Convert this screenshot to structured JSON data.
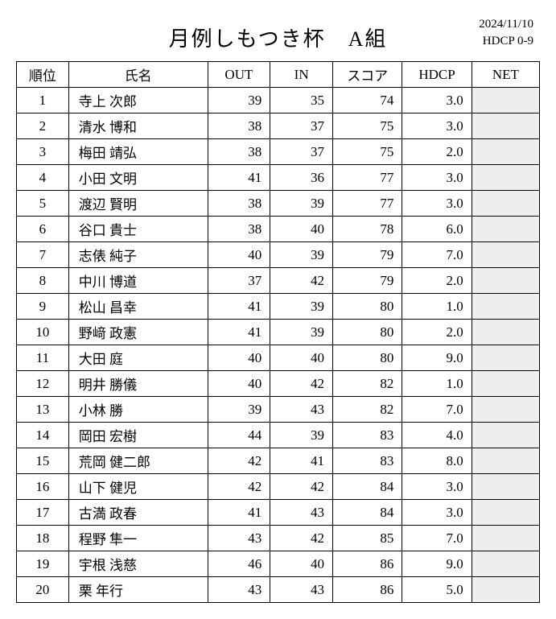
{
  "header": {
    "title": "月例しもつき杯　A組",
    "date": "2024/11/10",
    "hdcp_range": "HDCP 0-9"
  },
  "table": {
    "columns": [
      "順位",
      "氏名",
      "OUT",
      "IN",
      "スコア",
      "HDCP",
      "NET"
    ],
    "net_background": "#eeeeee",
    "rows": [
      {
        "rank": "1",
        "name": "寺上 次郎",
        "out": "39",
        "in": "35",
        "score": "74",
        "hdcp": "3.0",
        "net": ""
      },
      {
        "rank": "2",
        "name": "清水 博和",
        "out": "38",
        "in": "37",
        "score": "75",
        "hdcp": "3.0",
        "net": ""
      },
      {
        "rank": "3",
        "name": "梅田 靖弘",
        "out": "38",
        "in": "37",
        "score": "75",
        "hdcp": "2.0",
        "net": ""
      },
      {
        "rank": "4",
        "name": "小田 文明",
        "out": "41",
        "in": "36",
        "score": "77",
        "hdcp": "3.0",
        "net": ""
      },
      {
        "rank": "5",
        "name": "渡辺 賢明",
        "out": "38",
        "in": "39",
        "score": "77",
        "hdcp": "3.0",
        "net": ""
      },
      {
        "rank": "6",
        "name": "谷口 貴士",
        "out": "38",
        "in": "40",
        "score": "78",
        "hdcp": "6.0",
        "net": ""
      },
      {
        "rank": "7",
        "name": "志俵 純子",
        "out": "40",
        "in": "39",
        "score": "79",
        "hdcp": "7.0",
        "net": ""
      },
      {
        "rank": "8",
        "name": "中川 博道",
        "out": "37",
        "in": "42",
        "score": "79",
        "hdcp": "2.0",
        "net": ""
      },
      {
        "rank": "9",
        "name": "松山 昌幸",
        "out": "41",
        "in": "39",
        "score": "80",
        "hdcp": "1.0",
        "net": ""
      },
      {
        "rank": "10",
        "name": "野﨑 政憲",
        "out": "41",
        "in": "39",
        "score": "80",
        "hdcp": "2.0",
        "net": ""
      },
      {
        "rank": "11",
        "name": "大田 庭",
        "out": "40",
        "in": "40",
        "score": "80",
        "hdcp": "9.0",
        "net": ""
      },
      {
        "rank": "12",
        "name": "明井 勝儀",
        "out": "40",
        "in": "42",
        "score": "82",
        "hdcp": "1.0",
        "net": ""
      },
      {
        "rank": "13",
        "name": "小林 勝",
        "out": "39",
        "in": "43",
        "score": "82",
        "hdcp": "7.0",
        "net": ""
      },
      {
        "rank": "14",
        "name": "岡田 宏樹",
        "out": "44",
        "in": "39",
        "score": "83",
        "hdcp": "4.0",
        "net": ""
      },
      {
        "rank": "15",
        "name": "荒岡 健二郎",
        "out": "42",
        "in": "41",
        "score": "83",
        "hdcp": "8.0",
        "net": ""
      },
      {
        "rank": "16",
        "name": "山下 健児",
        "out": "42",
        "in": "42",
        "score": "84",
        "hdcp": "3.0",
        "net": ""
      },
      {
        "rank": "17",
        "name": "古満 政春",
        "out": "41",
        "in": "43",
        "score": "84",
        "hdcp": "3.0",
        "net": ""
      },
      {
        "rank": "18",
        "name": "程野 隼一",
        "out": "43",
        "in": "42",
        "score": "85",
        "hdcp": "7.0",
        "net": ""
      },
      {
        "rank": "19",
        "name": "宇根 浅慈",
        "out": "46",
        "in": "40",
        "score": "86",
        "hdcp": "9.0",
        "net": ""
      },
      {
        "rank": "20",
        "name": "栗 年行",
        "out": "43",
        "in": "43",
        "score": "86",
        "hdcp": "5.0",
        "net": ""
      }
    ]
  }
}
